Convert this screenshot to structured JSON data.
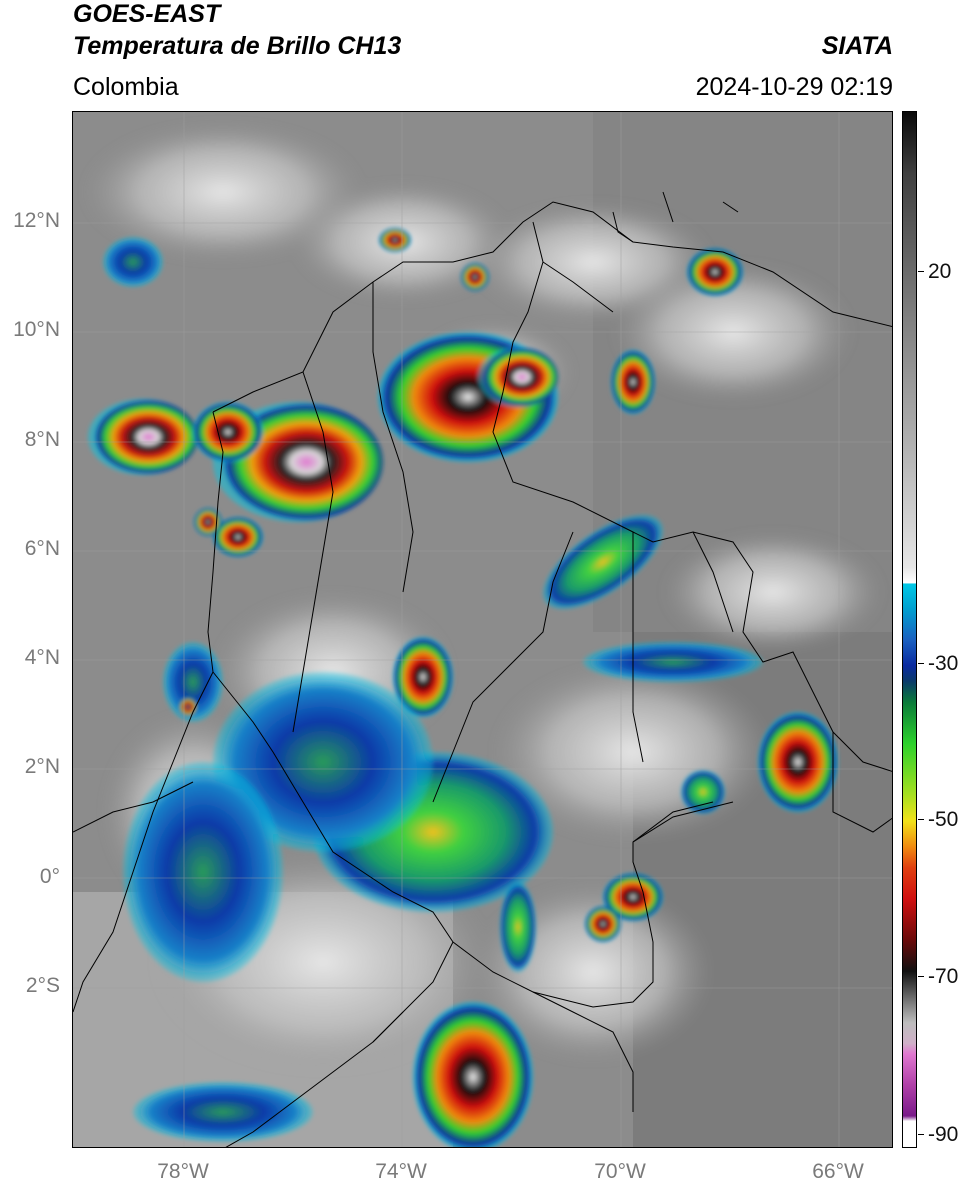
{
  "header": {
    "title_line1": "GOES-EAST",
    "title_line2": "Temperatura de Brillo CH13",
    "agency": "SIATA",
    "region": "Colombia",
    "timestamp": "2024-10-29 02:19"
  },
  "map": {
    "latitude_labels": [
      "12°N",
      "10°N",
      "8°N",
      "6°N",
      "4°N",
      "2°N",
      "0°",
      "2°S"
    ],
    "longitude_labels": [
      "78°W",
      "74°W",
      "70°W",
      "66°W"
    ]
  },
  "colorbar": {
    "unit_hint": "°C",
    "tick_labels": [
      "20",
      "-30",
      "-50",
      "-70",
      "-90"
    ],
    "colors": {
      "warm_gray": "#7f7f7f",
      "cyan": "#00c8e6",
      "blue": "#0a2aa0",
      "green": "#2cd12c",
      "yellow": "#f2e21a",
      "orange": "#f08a10",
      "red": "#d01010",
      "black": "#111111",
      "pink": "#e078d0",
      "purple": "#7a1a8a"
    }
  }
}
